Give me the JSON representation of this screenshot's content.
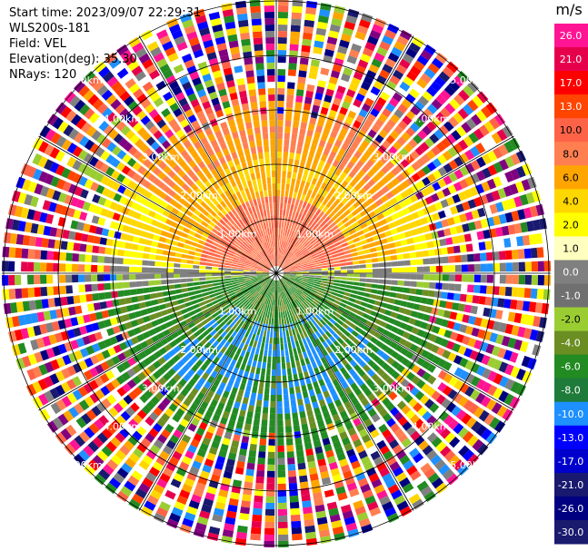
{
  "header": {
    "start_time": "Start time: 2023/09/07 22:29:31",
    "instrument": "WLS200s-181",
    "field": "Field: VEL",
    "elevation": "Elevation(deg): 35.30",
    "nrays": "NRays: 120"
  },
  "range_rings": {
    "labels": [
      "1.00km",
      "2.00km",
      "3.00km",
      "4.00km",
      "5.00km"
    ]
  },
  "colorbar": {
    "unit": "m/s",
    "ticks": [
      "26.0",
      "21.0",
      "17.0",
      "13.0",
      "10.0",
      "8.0",
      "6.0",
      "4.0",
      "2.0",
      "1.0",
      "0.0",
      "-1.0",
      "-2.0",
      "-4.0",
      "-6.0",
      "-8.0",
      "-10.0",
      "-13.0",
      "-17.0",
      "-21.0",
      "-26.0",
      "-30.0"
    ],
    "colors": [
      "#ff1493",
      "#e6004c",
      "#ff0000",
      "#ff4500",
      "#ff6347",
      "#ff7f50",
      "#ffa500",
      "#ffd700",
      "#ffff00",
      "#ffffbf",
      "#808080",
      "#707070",
      "#9acd32",
      "#6b8e23",
      "#228b22",
      "#1e7b3a",
      "#1e90ff",
      "#0000ff",
      "#0000cd",
      "#191970",
      "#000080",
      "#1a1a6e"
    ]
  }
}
